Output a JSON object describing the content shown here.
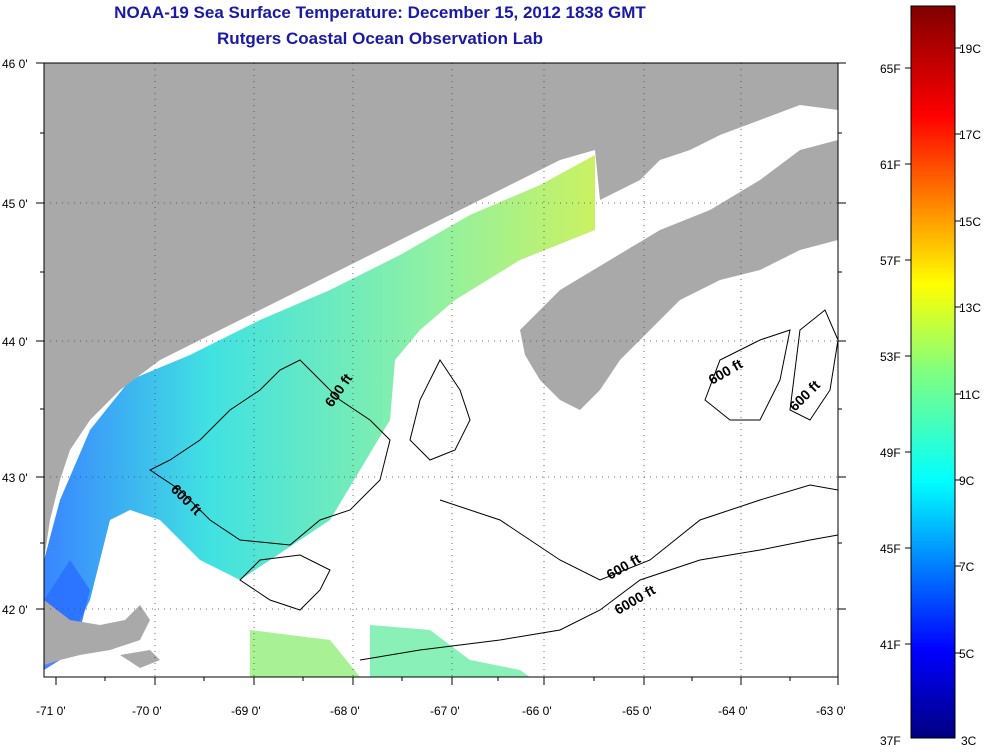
{
  "title": "NOAA-19 Sea Surface Temperature:  December 15, 2012 1838 GMT",
  "subtitle": "Rutgers Coastal Ocean Observation Lab",
  "lat_labels": [
    "46 0'",
    "45 0'",
    "44 0'",
    "43 0'",
    "42 0'"
  ],
  "lon_labels": [
    "-71 0'",
    "-70 0'",
    "-69 0'",
    "-68 0'",
    "-67 0'",
    "-66 0'",
    "-65 0'",
    "-64 0'",
    "-63 0'"
  ],
  "contour_labels": [
    "600 ft",
    "600 ft",
    "600 ft",
    "600 ft",
    "600 ft",
    "6000 ft"
  ],
  "colorbar": {
    "fahrenheit": [
      "65F",
      "61F",
      "57F",
      "53F",
      "49F",
      "45F",
      "41F",
      "37F"
    ],
    "celsius": [
      "19C",
      "17C",
      "15C",
      "13C",
      "11C",
      "9C",
      "7C",
      "5C",
      "3C"
    ]
  },
  "colors": {
    "land": "#a9a9a9",
    "title": "#1a1aa6",
    "water_nodata": "#ffffff"
  }
}
